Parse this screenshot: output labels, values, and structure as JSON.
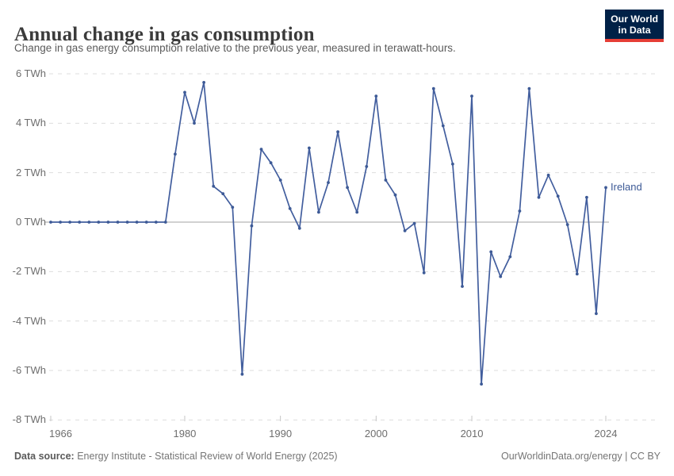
{
  "header": {
    "title": "Annual change in gas consumption",
    "logo": {
      "line1": "Our World",
      "line2": "in Data"
    }
  },
  "subtitle": "Change in gas energy consumption relative to the previous year, measured in terawatt-hours.",
  "chart_data": {
    "type": "line",
    "title": "Annual change in gas consumption",
    "entity": "Ireland",
    "unit": "TWh",
    "xlabel": "",
    "ylabel": "TWh",
    "xlim": [
      1966,
      2024
    ],
    "ylim": [
      -8,
      6
    ],
    "grid": "horizontal dashed, solid zero line",
    "legend_position": "end-of-line label",
    "x": [
      1966,
      1967,
      1968,
      1969,
      1970,
      1971,
      1972,
      1973,
      1974,
      1975,
      1976,
      1977,
      1978,
      1979,
      1980,
      1981,
      1982,
      1983,
      1984,
      1985,
      1986,
      1987,
      1988,
      1989,
      1990,
      1991,
      1992,
      1993,
      1994,
      1995,
      1996,
      1997,
      1998,
      1999,
      2000,
      2001,
      2002,
      2003,
      2004,
      2005,
      2006,
      2007,
      2008,
      2009,
      2010,
      2011,
      2012,
      2013,
      2014,
      2015,
      2016,
      2017,
      2018,
      2019,
      2020,
      2021,
      2022,
      2023,
      2024
    ],
    "series": [
      {
        "name": "Ireland",
        "values": [
          0,
          0,
          0,
          0,
          0,
          0,
          0,
          0,
          0,
          0,
          0,
          0,
          0,
          2.75,
          5.25,
          4.0,
          5.65,
          1.45,
          1.15,
          0.6,
          -6.15,
          -0.15,
          2.95,
          2.4,
          1.7,
          0.55,
          -0.25,
          3.0,
          0.4,
          1.6,
          3.65,
          1.4,
          0.4,
          2.25,
          5.1,
          1.7,
          1.1,
          -0.35,
          -0.05,
          -2.05,
          5.4,
          3.9,
          2.35,
          -2.6,
          5.1,
          -6.55,
          -1.2,
          -2.2,
          -1.4,
          0.45,
          5.4,
          1.0,
          1.9,
          1.05,
          -0.1,
          -2.1,
          1.0,
          -3.7,
          1.4
        ]
      }
    ],
    "yticks": [
      {
        "value": 6,
        "label": "6 TWh"
      },
      {
        "value": 4,
        "label": "4 TWh"
      },
      {
        "value": 2,
        "label": "2 TWh"
      },
      {
        "value": 0,
        "label": "0 TWh"
      },
      {
        "value": -2,
        "label": "-2 TWh"
      },
      {
        "value": -4,
        "label": "-4 TWh"
      },
      {
        "value": -6,
        "label": "-6 TWh"
      },
      {
        "value": -8,
        "label": "-8 TWh"
      }
    ],
    "xticks": [
      {
        "value": 1966,
        "label": "1966"
      },
      {
        "value": 1980,
        "label": "1980"
      },
      {
        "value": 1990,
        "label": "1990"
      },
      {
        "value": 2000,
        "label": "2000"
      },
      {
        "value": 2010,
        "label": "2010"
      },
      {
        "value": 2024,
        "label": "2024"
      }
    ],
    "colors": {
      "line": "#425e9e",
      "point": "#3d5a96",
      "entity_label": "#3d5a96",
      "grid": "#dddddd",
      "zero_line": "#a3a3a3",
      "axis_tick": "#c4c4c4",
      "tick_text": "#6e6e6e"
    }
  },
  "footer": {
    "source_label": "Data source:",
    "source_text": " Energy Institute - Statistical Review of World Energy (2025)",
    "right_text": "OurWorldinData.org/energy | CC BY"
  }
}
